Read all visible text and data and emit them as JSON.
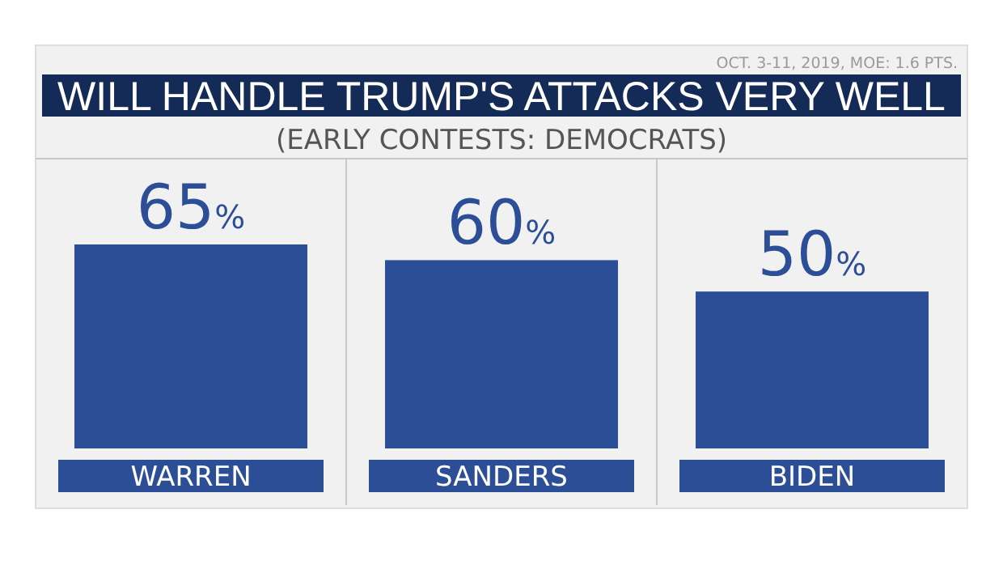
{
  "chart_data": {
    "type": "bar",
    "title": "WILL HANDLE TRUMP'S ATTACKS VERY WELL",
    "subtitle": "(EARLY CONTESTS: DEMOCRATS)",
    "annotations": [
      "OCT. 3-11, 2019, MOE: 1.6 PTS."
    ],
    "categories": [
      "WARREN",
      "SANDERS",
      "BIDEN"
    ],
    "values": [
      65,
      60,
      50
    ],
    "value_labels": [
      "65%",
      "60%",
      "50%"
    ],
    "color": "#2c4e97"
  }
}
